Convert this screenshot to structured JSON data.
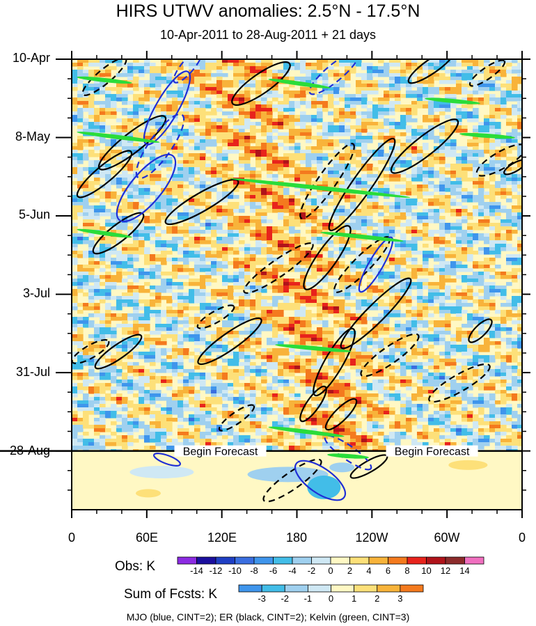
{
  "chart_data": {
    "type": "heatmap",
    "title": "HIRS UTWV anomalies: 2.5°N - 17.5°N",
    "subtitle": "10-Apr-2011 to 28-Aug-2011 + 21 days",
    "xlabel": "",
    "ylabel": "",
    "x_tick_labels": [
      "0",
      "60E",
      "120E",
      "180",
      "120W",
      "60W",
      "0"
    ],
    "y_tick_labels": [
      "10-Apr",
      "8-May",
      "5-Jun",
      "3-Jul",
      "31-Jul",
      "28-Aug"
    ],
    "x_range_deg_east": [
      0,
      360
    ],
    "y_range_days": [
      0,
      161
    ],
    "forecast_start_day": 140,
    "forecast_label": "Begin Forecast",
    "obs_colorbar": {
      "label": "Obs: K",
      "levels": [
        -14,
        -12,
        -10,
        -8,
        -6,
        -4,
        -2,
        0,
        2,
        4,
        6,
        8,
        10,
        12,
        14
      ],
      "colors": [
        "#8c2be2",
        "#1b0f9e",
        "#1f3fc4",
        "#3a6ee0",
        "#3f95ec",
        "#42bde8",
        "#9fd0ef",
        "#cfe8f4",
        "#fff8c4",
        "#fde079",
        "#f8b33a",
        "#f47a1e",
        "#e8231c",
        "#b0131a",
        "#8c2b2b",
        "#f06fbf"
      ]
    },
    "fcst_colorbar": {
      "label": "Sum of Fcsts: K",
      "levels": [
        -3,
        -2,
        -1,
        0,
        1,
        2,
        3
      ],
      "colors": [
        "#3f95ec",
        "#42bde8",
        "#9fd0ef",
        "#cfe8f4",
        "#fff8c4",
        "#fde079",
        "#f8b33a",
        "#f47a1e"
      ]
    },
    "contour_legend": "MJO (blue, CINT=2); ER (black, CINT=2); Kelvin (green, CINT=3)",
    "series": [
      {
        "name": "MJO",
        "color": "#1f2fd6",
        "contour_interval": 2
      },
      {
        "name": "ER",
        "color": "#000000",
        "contour_interval": 2
      },
      {
        "name": "Kelvin",
        "color": "#2adc3a",
        "contour_interval": 3
      }
    ]
  }
}
